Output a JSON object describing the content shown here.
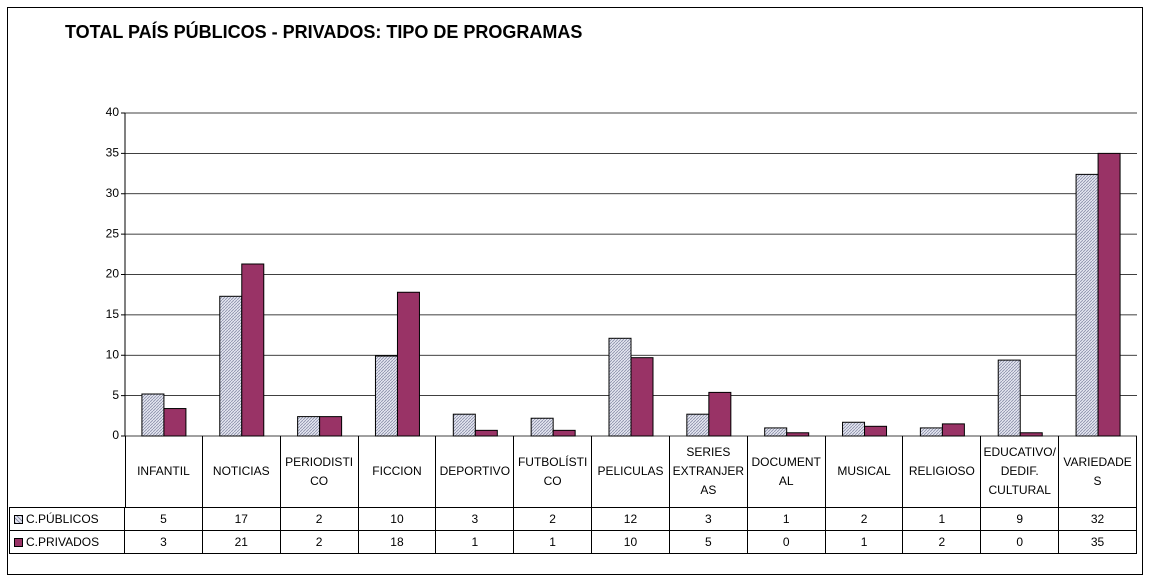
{
  "chart_data": {
    "type": "bar",
    "title": "TOTAL PAÍS PÚBLICOS - PRIVADOS: TIPO DE PROGRAMAS",
    "categories": [
      "INFANTIL",
      "NOTICIAS",
      "PERIODISTICO",
      "FICCION",
      "DEPORTIVO",
      "FUTBOLÍSTICO",
      "PELICULAS",
      "SERIES EXTRANJERAS",
      "DOCUMENTAL",
      "MUSICAL",
      "RELIGIOSO",
      "EDUCATIVO/ DEDIF. CULTURAL",
      "VARIEDADES"
    ],
    "series": [
      {
        "name": "C.PÚBLICOS",
        "color": "#c8cce0",
        "values": [
          5.2,
          17.3,
          2.4,
          9.9,
          2.7,
          2.2,
          12.1,
          2.7,
          1.0,
          1.7,
          1.0,
          9.4,
          32.4
        ],
        "value_labels": [
          "5",
          "17",
          "2",
          "10",
          "3",
          "2",
          "12",
          "3",
          "1",
          "2",
          "1",
          "9",
          "32"
        ]
      },
      {
        "name": "C.PRIVADOS",
        "color": "#993366",
        "values": [
          3.4,
          21.3,
          2.4,
          17.8,
          0.7,
          0.7,
          9.7,
          5.4,
          0.4,
          1.2,
          1.5,
          0.4,
          35.0
        ],
        "value_labels": [
          "3",
          "21",
          "2",
          "18",
          "1",
          "1",
          "10",
          "5",
          "0",
          "1",
          "2",
          "0",
          "35"
        ]
      }
    ],
    "ylim": [
      0,
      40
    ],
    "yticks": [
      0,
      5,
      10,
      15,
      20,
      25,
      30,
      35,
      40
    ],
    "grid": true
  }
}
